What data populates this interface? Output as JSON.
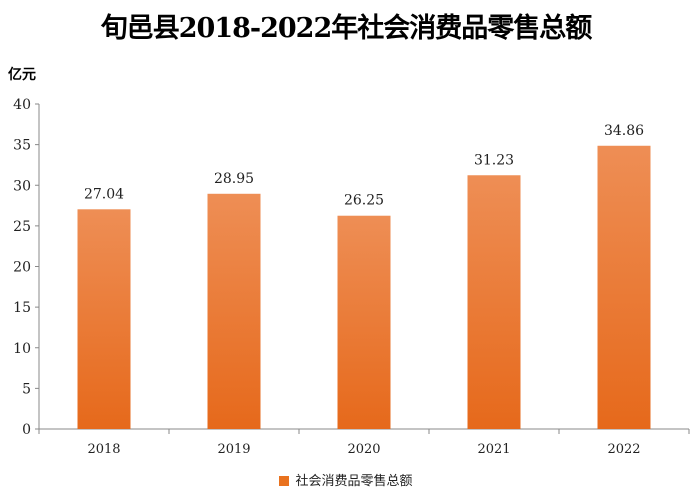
{
  "chart_data": {
    "type": "bar",
    "title": "旬邑县2018-2022年社会消费品零售总额",
    "ylabel": "亿元",
    "xlabel": "",
    "categories": [
      "2018",
      "2019",
      "2020",
      "2021",
      "2022"
    ],
    "series": [
      {
        "name": "社会消费品零售总额",
        "values": [
          27.04,
          28.95,
          26.25,
          31.23,
          34.86
        ]
      }
    ],
    "data_labels": [
      "27.04",
      "28.95",
      "26.25",
      "31.23",
      "34.86"
    ],
    "ylim": [
      0,
      40
    ],
    "yticks": [
      0,
      5,
      10,
      15,
      20,
      25,
      30,
      35,
      40
    ],
    "grid": false,
    "legend": "bottom-center",
    "colors": {
      "bar_top": "#ee8e55",
      "bar_bottom": "#e6691b",
      "axis": "#888888"
    }
  }
}
